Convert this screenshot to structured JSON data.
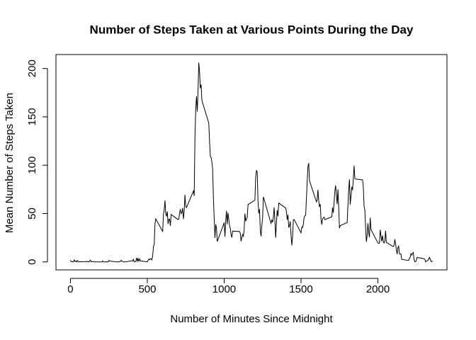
{
  "chart_data": {
    "type": "line",
    "title": "Number of Steps Taken at Various Points During the Day",
    "x_label": "Number of Minutes Since Midnight",
    "y_label": "Mean Number of Steps Taken",
    "x": [
      0,
      5,
      10,
      15,
      20,
      25,
      30,
      35,
      40,
      45,
      50,
      55,
      100,
      105,
      110,
      115,
      120,
      125,
      130,
      135,
      140,
      145,
      150,
      155,
      200,
      205,
      210,
      215,
      220,
      225,
      230,
      235,
      240,
      245,
      250,
      255,
      300,
      305,
      310,
      315,
      320,
      325,
      330,
      335,
      340,
      345,
      350,
      355,
      400,
      405,
      410,
      415,
      420,
      425,
      430,
      435,
      440,
      445,
      450,
      455,
      500,
      505,
      510,
      515,
      520,
      525,
      530,
      535,
      540,
      545,
      550,
      555,
      600,
      605,
      610,
      615,
      620,
      625,
      630,
      635,
      640,
      645,
      650,
      655,
      700,
      705,
      710,
      715,
      720,
      725,
      730,
      735,
      740,
      745,
      750,
      755,
      800,
      805,
      810,
      815,
      820,
      825,
      830,
      835,
      840,
      845,
      850,
      855,
      900,
      905,
      910,
      915,
      920,
      925,
      930,
      935,
      940,
      945,
      950,
      955,
      1000,
      1005,
      1010,
      1015,
      1020,
      1025,
      1030,
      1035,
      1040,
      1045,
      1050,
      1055,
      1100,
      1105,
      1110,
      1115,
      1120,
      1125,
      1130,
      1135,
      1140,
      1145,
      1150,
      1155,
      1200,
      1205,
      1210,
      1215,
      1220,
      1225,
      1230,
      1235,
      1240,
      1245,
      1250,
      1255,
      1300,
      1305,
      1310,
      1315,
      1320,
      1325,
      1330,
      1335,
      1340,
      1345,
      1350,
      1355,
      1400,
      1405,
      1410,
      1415,
      1420,
      1425,
      1430,
      1435,
      1440,
      1445,
      1450,
      1455,
      1500,
      1505,
      1510,
      1515,
      1520,
      1525,
      1530,
      1535,
      1540,
      1545,
      1550,
      1555,
      1600,
      1605,
      1610,
      1615,
      1620,
      1625,
      1630,
      1635,
      1640,
      1645,
      1650,
      1655,
      1700,
      1705,
      1710,
      1715,
      1720,
      1725,
      1730,
      1735,
      1740,
      1745,
      1750,
      1755,
      1800,
      1805,
      1810,
      1815,
      1820,
      1825,
      1830,
      1835,
      1840,
      1845,
      1850,
      1855,
      1900,
      1905,
      1910,
      1915,
      1920,
      1925,
      1930,
      1935,
      1940,
      1945,
      1950,
      1955,
      2000,
      2005,
      2010,
      2015,
      2020,
      2025,
      2030,
      2035,
      2040,
      2045,
      2050,
      2055,
      2100,
      2105,
      2110,
      2115,
      2120,
      2125,
      2130,
      2135,
      2140,
      2145,
      2150,
      2155,
      2200,
      2205,
      2210,
      2215,
      2220,
      2225,
      2230,
      2235,
      2240,
      2245,
      2250,
      2255,
      2300,
      2305,
      2310,
      2315,
      2320,
      2325,
      2330,
      2335,
      2340,
      2345,
      2350,
      2355
    ],
    "values": [
      1.7,
      0.3,
      0.1,
      0.2,
      0.1,
      2.1,
      0.5,
      0.9,
      0,
      1.5,
      0.3,
      0.1,
      0.3,
      0.7,
      0.2,
      0.3,
      0,
      1.1,
      1.8,
      0.2,
      0.2,
      0.4,
      0.3,
      0,
      0,
      0,
      1.1,
      0,
      0,
      0.1,
      0,
      0.2,
      0,
      0,
      1.5,
      0.9,
      0,
      0,
      0,
      0,
      0.2,
      0.6,
      1.6,
      0.6,
      0.5,
      0.1,
      0,
      0,
      1.2,
      0.9,
      2.6,
      0,
      0.3,
      0.4,
      4.1,
      0.7,
      3.5,
      0.8,
      3.1,
      1.1,
      0,
      1.6,
      3,
      2.2,
      3.3,
      3,
      2.1,
      6.1,
      16,
      18.3,
      39.5,
      44.5,
      31.5,
      49.3,
      53.8,
      63.5,
      50,
      47.1,
      52.2,
      39.3,
      44,
      44.2,
      37.4,
      49,
      43.8,
      44.4,
      50.5,
      54.5,
      49.9,
      50.9,
      55.7,
      44.3,
      52.3,
      69.5,
      57.8,
      56.2,
      73.4,
      68.2,
      129.4,
      157.5,
      171.2,
      155.4,
      177.3,
      206.2,
      195.9,
      179.6,
      183.4,
      167,
      143.5,
      124,
      109.1,
      108.1,
      103.7,
      96,
      66.2,
      45.2,
      24.8,
      38.8,
      35,
      21.1,
      40.6,
      26.1,
      42.4,
      52.7,
      38.9,
      50.8,
      44.3,
      37.4,
      34.7,
      28.3,
      25.1,
      31.9,
      31.4,
      29.7,
      21.3,
      25.5,
      28.4,
      26.5,
      33.4,
      50,
      42,
      44.6,
      46,
      59.2,
      63.9,
      87.7,
      94.8,
      92.8,
      63.4,
      50.2,
      54.5,
      32.4,
      26.5,
      37.7,
      45.1,
      67.3,
      42.3,
      39.9,
      43.3,
      41,
      46.2,
      56.4,
      42.8,
      25.1,
      40,
      53.5,
      47.3,
      60.8,
      55.8,
      52,
      43.6,
      48.7,
      35.5,
      37.5,
      41.8,
      27.5,
      17.1,
      26.1,
      43.6,
      43.8,
      30,
      36.1,
      35.5,
      38.8,
      46,
      47.8,
      48.1,
      65.3,
      82.9,
      98.7,
      102.1,
      84,
      62.1,
      64.1,
      74.5,
      63.2,
      56.9,
      59.8,
      43.9,
      38.6,
      44.7,
      45.5,
      46.2,
      43.7,
      46.6,
      56.3,
      50.7,
      61.2,
      73.4,
      79.1,
      68.9,
      59.7,
      75.1,
      56.5,
      34.8,
      37.5,
      40.7,
      58,
      74.7,
      85.3,
      59.3,
      67.8,
      77.7,
      74.2,
      85.3,
      99.5,
      86.6,
      85.6,
      84.9,
      77.8,
      58,
      53.4,
      36.3,
      20.7,
      27.4,
      40,
      30.2,
      25.5,
      45.7,
      33.5,
      19.6,
      19,
      19.3,
      33.3,
      26.8,
      21.2,
      27.3,
      21.3,
      19.5,
      21.3,
      32.3,
      20.2,
      15.9,
      17.2,
      23.5,
      19.2,
      12.5,
      8,
      14.7,
      16.3,
      8.7,
      7.8,
      8.1,
      2.6,
      1.5,
      3.7,
      4.8,
      8.5,
      7.1,
      8.7,
      9.8,
      2.2,
      0.3,
      0.1,
      1.6,
      4.6,
      3.3,
      2.8,
      0,
      0.8,
      1,
      1.6,
      2.6,
      4.7,
      3.3,
      0.6,
      0.2,
      1.1
    ],
    "color": "#000000",
    "xlim": [
      -94.2,
      2449.2
    ],
    "ylim": [
      -8.25,
      214.43
    ],
    "xticks": [
      0,
      500,
      1000,
      1500,
      2000
    ],
    "yticks": [
      0,
      50,
      100,
      150,
      200
    ]
  }
}
